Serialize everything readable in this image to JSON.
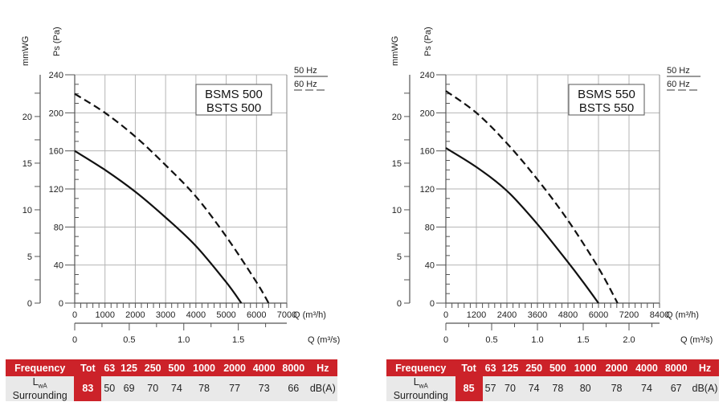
{
  "chart_data": [
    {
      "type": "line",
      "title": "BSMS 500 / BSTS 500",
      "model_label": [
        "BSMS 500",
        "BSTS 500"
      ],
      "ylabel_left": "Ps (Pa)",
      "ylabel_secondary": "mmWG",
      "xlabel": "Q (m³/h)",
      "xlabel_secondary": "Q (m³/s)",
      "xlim": [
        0,
        7000
      ],
      "ylim": [
        0,
        240
      ],
      "x_ticks": [
        "0",
        "1000",
        "2000",
        "3000",
        "4000",
        "5000",
        "6000",
        "7000"
      ],
      "y_ticks": [
        "0",
        "40",
        "80",
        "120",
        "160",
        "200",
        "240"
      ],
      "mmwg_ticks": [
        "0",
        "5",
        "10",
        "15",
        "20"
      ],
      "m3s_ticks": [
        "0",
        "0.5",
        "1.0",
        "1.5"
      ],
      "grid": true,
      "legend": [
        {
          "label": "50 Hz",
          "style": "solid"
        },
        {
          "label": "60 Hz",
          "style": "dashed"
        }
      ],
      "legend_position": "top-right",
      "series": [
        {
          "name": "50 Hz",
          "style": "solid",
          "x": [
            0,
            1000,
            2000,
            3000,
            4000,
            5000,
            5500
          ],
          "y": [
            160,
            140,
            117,
            90,
            60,
            22,
            0
          ]
        },
        {
          "name": "60 Hz",
          "style": "dashed",
          "x": [
            0,
            1000,
            2000,
            3000,
            4000,
            5000,
            6000,
            6400
          ],
          "y": [
            220,
            200,
            175,
            145,
            112,
            70,
            22,
            0
          ]
        }
      ]
    },
    {
      "type": "line",
      "title": "BSMS 550 / BSTS 550",
      "model_label": [
        "BSMS 550",
        "BSTS 550"
      ],
      "ylabel_left": "Ps (Pa)",
      "ylabel_secondary": "mmWG",
      "xlabel": "Q (m³/h)",
      "xlabel_secondary": "Q (m³/s)",
      "xlim": [
        0,
        8400
      ],
      "ylim": [
        0,
        240
      ],
      "x_ticks": [
        "0",
        "1200",
        "2400",
        "3600",
        "4800",
        "6000",
        "7200",
        "8400"
      ],
      "y_ticks": [
        "0",
        "40",
        "80",
        "120",
        "160",
        "200",
        "240"
      ],
      "mmwg_ticks": [
        "0",
        "5",
        "10",
        "15",
        "20"
      ],
      "m3s_ticks": [
        "0",
        "0.5",
        "1.0",
        "1.5",
        "2.0"
      ],
      "grid": true,
      "legend": [
        {
          "label": "50 Hz",
          "style": "solid"
        },
        {
          "label": "60 Hz",
          "style": "dashed"
        }
      ],
      "legend_position": "top-right",
      "series": [
        {
          "name": "50 Hz",
          "style": "solid",
          "x": [
            0,
            1200,
            2400,
            3600,
            4800,
            5400,
            6000
          ],
          "y": [
            163,
            143,
            118,
            83,
            43,
            22,
            0
          ]
        },
        {
          "name": "60 Hz",
          "style": "dashed",
          "x": [
            0,
            1200,
            2400,
            3600,
            4800,
            6000,
            6750
          ],
          "y": [
            223,
            200,
            168,
            130,
            87,
            37,
            0
          ]
        }
      ]
    }
  ],
  "noise_tables": [
    {
      "header": [
        "Frequency",
        "Tot",
        "63",
        "125",
        "250",
        "500",
        "1000",
        "2000",
        "4000",
        "8000",
        "Hz"
      ],
      "row_label_main": "L",
      "row_label_sub": "wA",
      "row_label_rest": " Surrounding",
      "tot": "83",
      "values": [
        "50",
        "69",
        "70",
        "74",
        "78",
        "77",
        "73",
        "66"
      ],
      "unit": "dB(A)"
    },
    {
      "header": [
        "Frequency",
        "Tot",
        "63",
        "125",
        "250",
        "500",
        "1000",
        "2000",
        "4000",
        "8000",
        "Hz"
      ],
      "row_label_main": "L",
      "row_label_sub": "wA",
      "row_label_rest": " Surrounding",
      "tot": "85",
      "values": [
        "57",
        "70",
        "74",
        "78",
        "80",
        "78",
        "74",
        "67"
      ],
      "unit": "dB(A)"
    }
  ],
  "colors": {
    "accent": "#cc2229",
    "grid": "#b5b5b5",
    "row_bg": "#e9e9e9",
    "curve": "#111111"
  }
}
